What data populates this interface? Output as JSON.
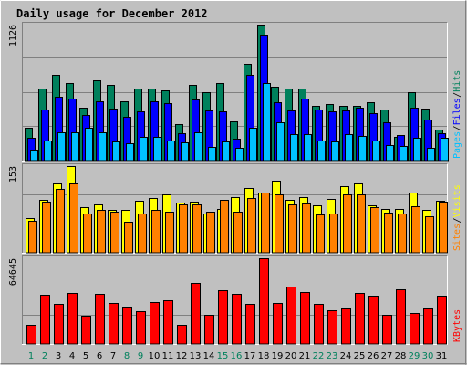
{
  "colors": {
    "background": "#C0C0C0",
    "title": "#0000A0",
    "hits": "#00805C",
    "files": "#0000FF",
    "pages": "#00C0FF",
    "visits": "#FFFF00",
    "sites": "#FF8000",
    "kbytes": "#FF0000",
    "weekend_day": "#00805C",
    "weekday": "#000000",
    "separator": "#000000"
  },
  "chart_data": {
    "type": "bar",
    "title": "Daily usage for December 2012",
    "categories": [
      "1",
      "2",
      "3",
      "4",
      "5",
      "6",
      "7",
      "8",
      "9",
      "10",
      "11",
      "12",
      "13",
      "14",
      "15",
      "16",
      "17",
      "18",
      "19",
      "20",
      "21",
      "22",
      "23",
      "24",
      "25",
      "26",
      "27",
      "28",
      "29",
      "30",
      "31"
    ],
    "weekend_days": [
      "1",
      "2",
      "8",
      "9",
      "15",
      "16",
      "22",
      "23",
      "29",
      "30"
    ],
    "panels": [
      {
        "name": "hits-files-pages",
        "max_label": "1126",
        "ymax": 1126,
        "legend": [
          "Pages",
          "Files",
          "Hits"
        ],
        "series": [
          {
            "name": "Hits",
            "values": [
              270,
              600,
              710,
              640,
              440,
              665,
              628,
              490,
              600,
              600,
              580,
              300,
              630,
              570,
              645,
              325,
              800,
              1126,
              615,
              600,
              600,
              450,
              466,
              457,
              457,
              480,
              420,
              200,
              566,
              430,
              260
            ]
          },
          {
            "name": "Files",
            "values": [
              186,
              424,
              529,
              517,
              377,
              488,
              429,
              366,
              408,
              493,
              475,
              229,
              505,
              413,
              410,
              182,
              710,
              1040,
              484,
              417,
              515,
              420,
              408,
              414,
              439,
              394,
              320,
              213,
              442,
              339,
              229
            ]
          },
          {
            "name": "Pages",
            "values": [
              94,
              168,
              235,
              237,
              270,
              232,
              158,
              140,
              193,
              200,
              169,
              150,
              235,
              110,
              157,
              105,
              270,
              640,
              320,
              218,
              220,
              167,
              161,
              219,
              204,
              163,
              131,
              124,
              191,
              106,
              190
            ]
          }
        ]
      },
      {
        "name": "visits-sites",
        "max_label": "153",
        "ymax": 153,
        "legend": [
          "Sites",
          "Visits"
        ],
        "series": [
          {
            "name": "Visits",
            "values": [
              62,
              93,
              123,
              153,
              81,
              86,
              76,
              75,
              91,
              97,
              103,
              88,
              90,
              70,
              78,
              98,
              115,
              107,
              127,
              93,
              98,
              84,
              95,
              117,
              123,
              83,
              77,
              77,
              107,
              75,
              92
            ]
          },
          {
            "name": "Sites",
            "values": [
              57,
              90,
              112,
              122,
              70,
              76,
              72,
              55,
              69,
              76,
              72,
              86,
              86,
              72,
              93,
              72,
              96,
              106,
              103,
              85,
              87,
              68,
              70,
              103,
              103,
              81,
              71,
              70,
              82,
              64,
              90
            ]
          }
        ]
      },
      {
        "name": "kbytes",
        "max_label": "64645",
        "ymax": 64645,
        "legend": [
          "KBytes"
        ],
        "series": [
          {
            "name": "KBytes",
            "values": [
              14500,
              37400,
              30500,
              38200,
              21200,
              38000,
              31000,
              28400,
              24500,
              31800,
              32800,
              14600,
              46000,
              22100,
              40600,
              38000,
              30500,
              64645,
              31200,
              43100,
              39500,
              30600,
              25600,
              26500,
              38600,
              36400,
              22200,
              41300,
              23600,
              26900,
              36400
            ]
          }
        ]
      }
    ]
  }
}
